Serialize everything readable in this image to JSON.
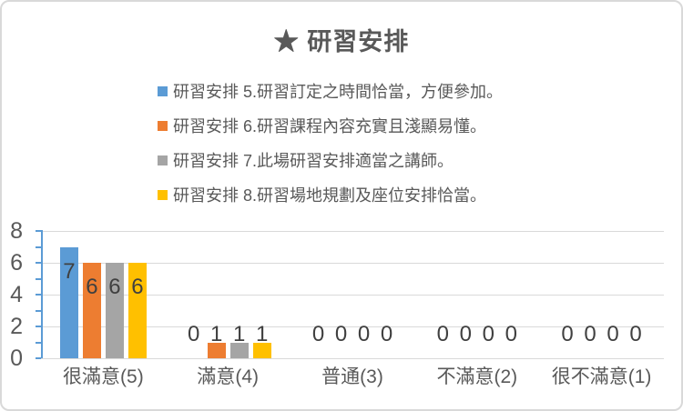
{
  "window": {
    "background": "#FFFFFF",
    "border_color": "#D9D9D9"
  },
  "chart_data": {
    "type": "bar",
    "title": "★ 研習安排",
    "categories": [
      "很滿意(5)",
      "滿意(4)",
      "普通(3)",
      "不滿意(2)",
      "很不滿意(1)"
    ],
    "series": [
      {
        "name": "研習安排 5.研習訂定之時間恰當，方便參加。",
        "color": "#5B9BD5",
        "values": [
          7,
          0,
          0,
          0,
          0
        ]
      },
      {
        "name": "研習安排 6.研習課程內容充實且淺顯易懂。",
        "color": "#ED7D31",
        "values": [
          6,
          1,
          0,
          0,
          0
        ]
      },
      {
        "name": "研習安排 7.此場研習安排適當之講師。",
        "color": "#A5A5A5",
        "values": [
          6,
          1,
          0,
          0,
          0
        ]
      },
      {
        "name": "研習安排 8.研習場地規劃及座位安排恰當。",
        "color": "#FFC000",
        "values": [
          6,
          1,
          0,
          0,
          0
        ]
      }
    ],
    "ylim": [
      0,
      8
    ],
    "yticks": [
      0,
      2,
      4,
      6,
      8
    ],
    "minor_tick_step": 1,
    "grid": true,
    "data_labels": true,
    "legend_position": "top-left-stacked",
    "colors": {
      "axis_line": "#5B9BD5",
      "gridline": "#D9D9D9",
      "axis_text": "#595959",
      "category_text": "#595959",
      "data_label_text": "#404040",
      "title_text": "#595959",
      "legend_text": "#595959"
    }
  }
}
